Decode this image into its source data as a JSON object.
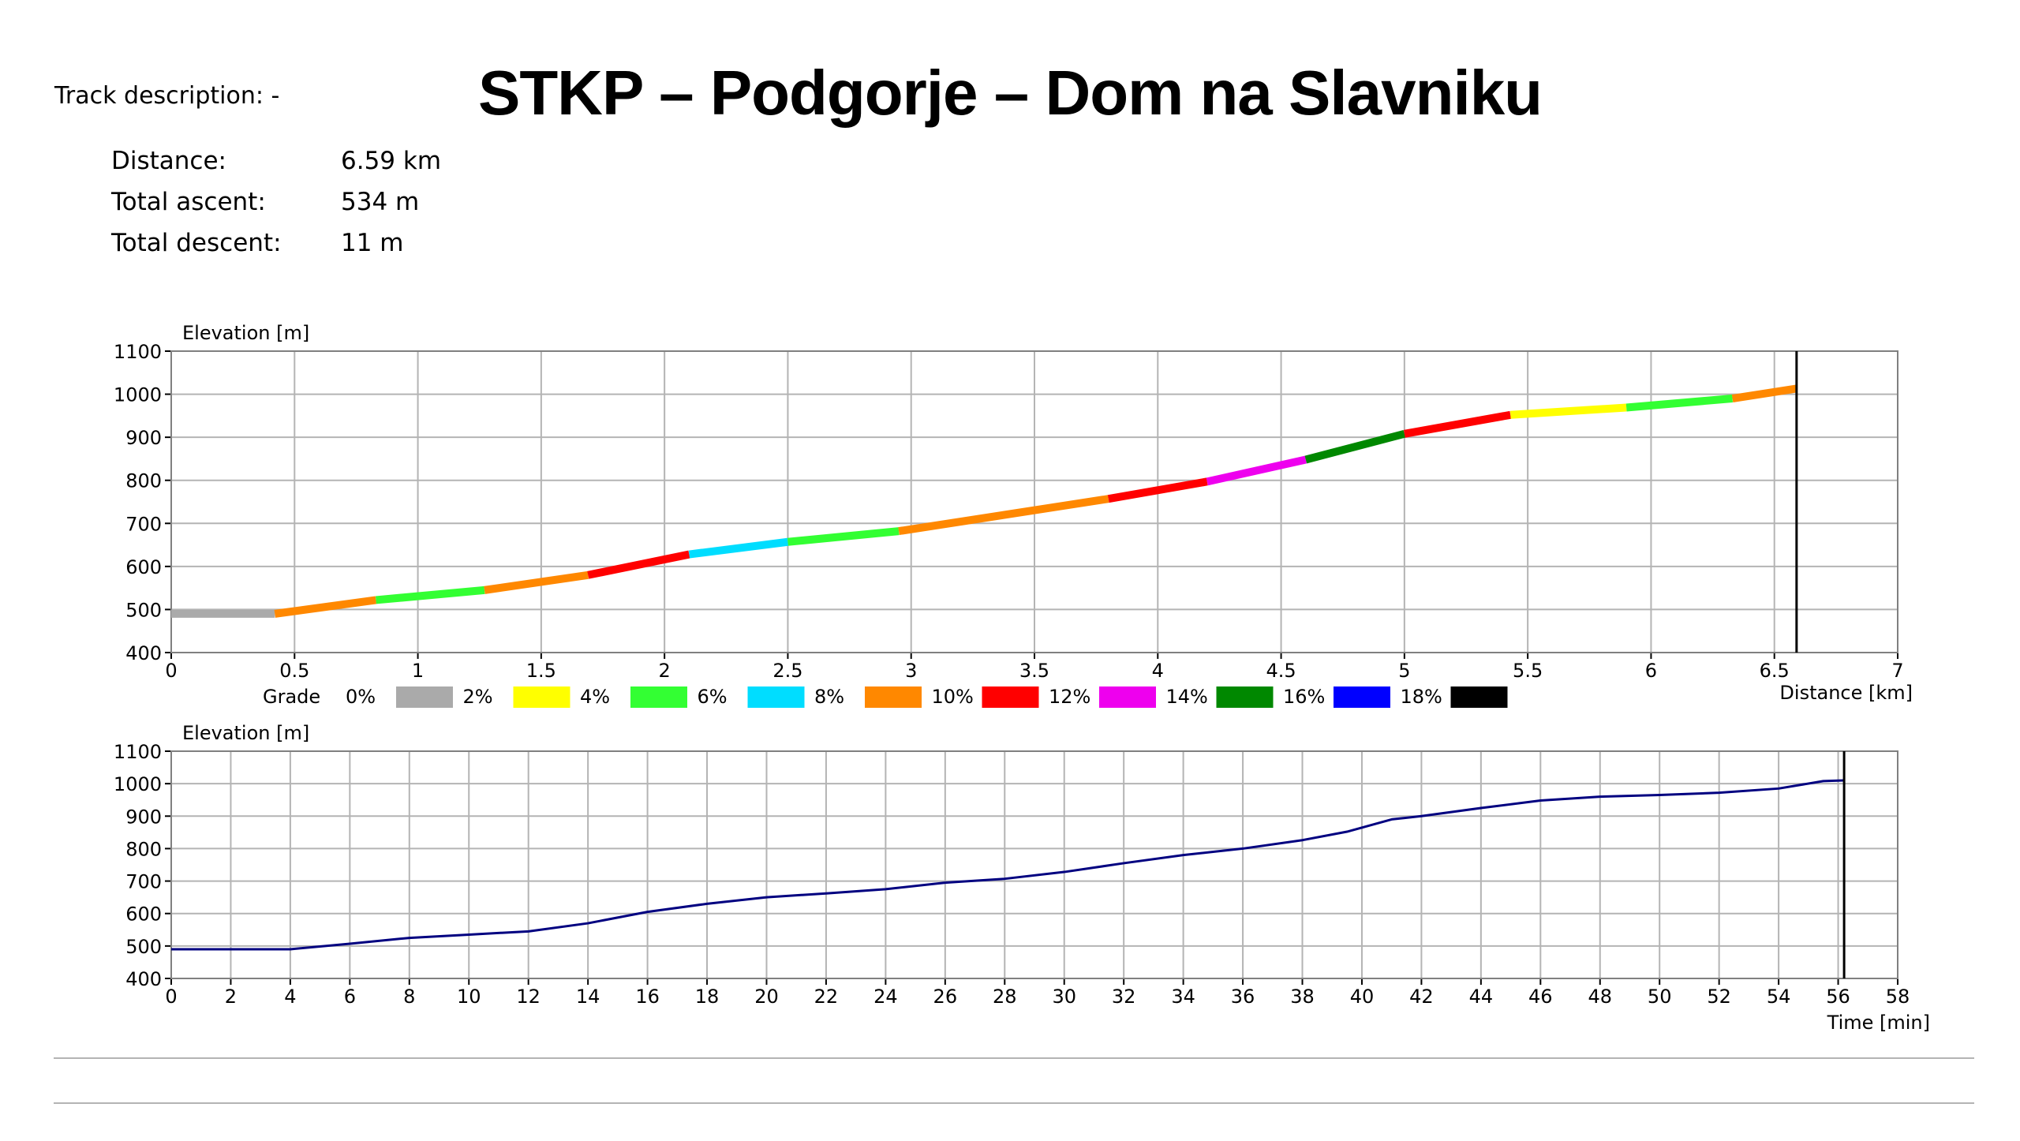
{
  "header": {
    "title": "STKP – Podgorje – Dom na Slavniku",
    "track_description": "Track description: -"
  },
  "stats": [
    {
      "label": "Distance:",
      "value": "6.59 km"
    },
    {
      "label": "Total ascent:",
      "value": "534 m"
    },
    {
      "label": "Total descent:",
      "value": "11 m"
    }
  ],
  "chart_data": [
    {
      "type": "line",
      "ylabel": "Elevation [m]",
      "xlabel": "Distance [km]",
      "xlim": [
        0,
        7
      ],
      "ylim": [
        400,
        1100
      ],
      "xticks": [
        "0",
        "0.5",
        "1",
        "1.5",
        "2",
        "2.5",
        "3",
        "3.5",
        "4",
        "4.5",
        "5",
        "5.5",
        "6",
        "6.5",
        "7"
      ],
      "yticks": [
        "400",
        "500",
        "600",
        "700",
        "800",
        "900",
        "1000",
        "1100"
      ],
      "grid": true,
      "end_marker_x": 6.59,
      "legend": {
        "title": "Grade",
        "items": [
          {
            "label": "0%",
            "color": "#aaaaaa"
          },
          {
            "label": "2%",
            "color": "#ffff00"
          },
          {
            "label": "4%",
            "color": "#33ff33"
          },
          {
            "label": "6%",
            "color": "#00ddff"
          },
          {
            "label": "8%",
            "color": "#ff8800"
          },
          {
            "label": "10%",
            "color": "#ff0000"
          },
          {
            "label": "12%",
            "color": "#ee00ee"
          },
          {
            "label": "14%",
            "color": "#008800"
          },
          {
            "label": "16%",
            "color": "#0000ff"
          },
          {
            "label": "18%",
            "color": "#000000"
          }
        ]
      },
      "segments": [
        {
          "x": [
            0,
            0.42
          ],
          "y": [
            490,
            490
          ],
          "color": "#aaaaaa"
        },
        {
          "x": [
            0.42,
            0.83
          ],
          "y": [
            490,
            522
          ],
          "color": "#ff8800"
        },
        {
          "x": [
            0.83,
            1.27
          ],
          "y": [
            522,
            545
          ],
          "color": "#33ff33"
        },
        {
          "x": [
            1.27,
            1.69
          ],
          "y": [
            545,
            580
          ],
          "color": "#ff8800"
        },
        {
          "x": [
            1.69,
            2.1
          ],
          "y": [
            580,
            628
          ],
          "color": "#ff0000"
        },
        {
          "x": [
            2.1,
            2.5
          ],
          "y": [
            628,
            657
          ],
          "color": "#00ddff"
        },
        {
          "x": [
            2.5,
            2.95
          ],
          "y": [
            657,
            682
          ],
          "color": "#33ff33"
        },
        {
          "x": [
            2.95,
            3.8
          ],
          "y": [
            682,
            757
          ],
          "color": "#ff8800"
        },
        {
          "x": [
            3.8,
            4.2
          ],
          "y": [
            757,
            797
          ],
          "color": "#ff0000"
        },
        {
          "x": [
            4.2,
            4.6
          ],
          "y": [
            797,
            848
          ],
          "color": "#ee00ee"
        },
        {
          "x": [
            4.6,
            5.0
          ],
          "y": [
            848,
            908
          ],
          "color": "#008800"
        },
        {
          "x": [
            5.0,
            5.43
          ],
          "y": [
            908,
            952
          ],
          "color": "#ff0000"
        },
        {
          "x": [
            5.43,
            5.9
          ],
          "y": [
            952,
            969
          ],
          "color": "#ffff00"
        },
        {
          "x": [
            5.9,
            6.33
          ],
          "y": [
            969,
            990
          ],
          "color": "#33ff33"
        },
        {
          "x": [
            6.33,
            6.59
          ],
          "y": [
            990,
            1013
          ],
          "color": "#ff8800"
        }
      ]
    },
    {
      "type": "line",
      "ylabel": "Elevation [m]",
      "xlabel": "Time [min]",
      "xlim": [
        0,
        58
      ],
      "ylim": [
        400,
        1100
      ],
      "xticks": [
        "0",
        "2",
        "4",
        "6",
        "8",
        "10",
        "12",
        "14",
        "16",
        "18",
        "20",
        "22",
        "24",
        "26",
        "28",
        "30",
        "32",
        "34",
        "36",
        "38",
        "40",
        "42",
        "44",
        "46",
        "48",
        "50",
        "52",
        "54",
        "56",
        "58"
      ],
      "yticks": [
        "400",
        "500",
        "600",
        "700",
        "800",
        "900",
        "1000",
        "1100"
      ],
      "grid": true,
      "end_marker_x": 56.2,
      "series": [
        {
          "color": "#000080",
          "x": [
            0,
            4,
            6,
            8,
            10,
            12,
            14,
            16,
            18,
            20,
            22,
            24,
            26,
            28,
            30,
            32,
            34,
            36,
            38,
            39.5,
            41,
            42,
            44,
            46,
            48,
            50,
            52,
            54,
            55.5,
            56.2
          ],
          "y": [
            490,
            490,
            507,
            525,
            535,
            545,
            570,
            605,
            630,
            650,
            662,
            675,
            695,
            707,
            728,
            755,
            780,
            800,
            826,
            852,
            890,
            900,
            925,
            948,
            960,
            965,
            972,
            985,
            1008,
            1010
          ]
        }
      ]
    }
  ]
}
